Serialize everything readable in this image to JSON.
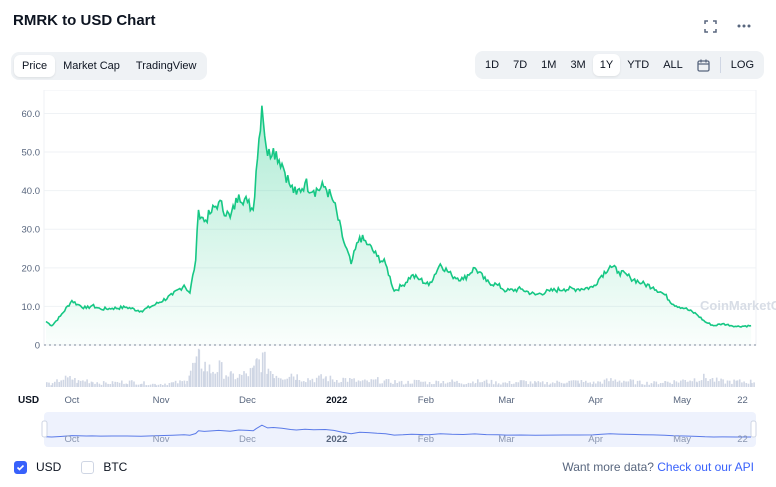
{
  "header": {
    "title": "RMRK to USD Chart"
  },
  "tabs": [
    {
      "label": "Price",
      "active": true
    },
    {
      "label": "Market Cap",
      "active": false
    },
    {
      "label": "TradingView",
      "active": false
    }
  ],
  "ranges": [
    {
      "label": "1D",
      "active": false
    },
    {
      "label": "7D",
      "active": false
    },
    {
      "label": "1M",
      "active": false
    },
    {
      "label": "3M",
      "active": false
    },
    {
      "label": "1Y",
      "active": true
    },
    {
      "label": "YTD",
      "active": false
    },
    {
      "label": "ALL",
      "active": false
    }
  ],
  "log_label": "LOG",
  "currencies": [
    {
      "label": "USD",
      "checked": true
    },
    {
      "label": "BTC",
      "checked": false
    }
  ],
  "api": {
    "prefix": "Want more data?",
    "link": "Check out our API"
  },
  "watermark": "CoinMarketCap",
  "colors": {
    "line": "#16c784",
    "accent": "#3861fb",
    "volume": "#cfd6e4",
    "nav_line": "#5a7ae8",
    "nav_fill": "#dde5fb"
  },
  "chart_data": {
    "type": "area",
    "x_unit": "date",
    "x": [
      "2021-09-22",
      "2021-09-24",
      "2021-09-27",
      "2021-10-01",
      "2021-10-03",
      "2021-10-06",
      "2021-10-08",
      "2021-10-11",
      "2021-10-15",
      "2021-10-20",
      "2021-10-25",
      "2021-10-30",
      "2021-11-05",
      "2021-11-09",
      "2021-11-11",
      "2021-11-13",
      "2021-11-14",
      "2021-11-16",
      "2021-11-18",
      "2021-11-21",
      "2021-11-25",
      "2021-11-28",
      "2021-12-01",
      "2021-12-03",
      "2021-12-04",
      "2021-12-06",
      "2021-12-08",
      "2021-12-10",
      "2021-12-13",
      "2021-12-16",
      "2021-12-18",
      "2021-12-21",
      "2021-12-24",
      "2021-12-28",
      "2021-12-31",
      "2022-01-03",
      "2022-01-06",
      "2022-01-09",
      "2022-01-12",
      "2022-01-15",
      "2022-01-18",
      "2022-01-21",
      "2022-01-24",
      "2022-01-27",
      "2022-01-30",
      "2022-02-02",
      "2022-02-06",
      "2022-02-10",
      "2022-02-14",
      "2022-02-18",
      "2022-02-22",
      "2022-02-26",
      "2022-03-01",
      "2022-03-06",
      "2022-03-11",
      "2022-03-16",
      "2022-03-21",
      "2022-03-26",
      "2022-03-31",
      "2022-04-03",
      "2022-04-06",
      "2022-04-09",
      "2022-04-13",
      "2022-04-17",
      "2022-04-21",
      "2022-04-25",
      "2022-04-28",
      "2022-05-02",
      "2022-05-06",
      "2022-05-09",
      "2022-05-12",
      "2022-05-15",
      "2022-05-20",
      "2022-05-25"
    ],
    "y": [
      6.1,
      5.0,
      7.5,
      11.5,
      10.5,
      9.5,
      10.2,
      9.3,
      9.5,
      9.8,
      8.8,
      10.5,
      13.0,
      15.5,
      13.5,
      22.0,
      35.0,
      32.0,
      34.0,
      37.0,
      33.0,
      39.0,
      37.0,
      35.0,
      45.0,
      62.0,
      49.0,
      51.0,
      47.0,
      41.0,
      39.0,
      42.0,
      40.0,
      41.0,
      37.0,
      28.0,
      21.0,
      28.0,
      26.0,
      23.0,
      21.0,
      14.0,
      15.5,
      18.0,
      17.0,
      15.5,
      21.0,
      18.0,
      17.0,
      20.0,
      16.5,
      15.5,
      14.0,
      14.5,
      13.0,
      14.0,
      14.5,
      14.5,
      15.0,
      18.0,
      20.5,
      19.0,
      17.5,
      16.0,
      15.0,
      13.0,
      10.5,
      9.5,
      8.0,
      6.0,
      5.0,
      5.5,
      4.8,
      5.0
    ],
    "volume": [
      0.15,
      0.1,
      0.3,
      0.3,
      0.2,
      0.25,
      0.2,
      0.15,
      0.15,
      0.2,
      0.15,
      0.1,
      0.15,
      0.2,
      0.6,
      0.9,
      1.0,
      0.8,
      0.6,
      0.7,
      0.4,
      0.4,
      0.5,
      0.6,
      0.9,
      1.0,
      0.7,
      0.5,
      0.4,
      0.5,
      0.4,
      0.3,
      0.3,
      0.35,
      0.25,
      0.3,
      0.25,
      0.2,
      0.2,
      0.25,
      0.2,
      0.2,
      0.15,
      0.2,
      0.2,
      0.15,
      0.2,
      0.2,
      0.15,
      0.2,
      0.2,
      0.15,
      0.15,
      0.2,
      0.15,
      0.15,
      0.2,
      0.2,
      0.15,
      0.2,
      0.25,
      0.25,
      0.2,
      0.15,
      0.15,
      0.2,
      0.2,
      0.25,
      0.3,
      0.35,
      0.25,
      0.2,
      0.2,
      0.2
    ],
    "yticks": [
      0,
      10,
      20,
      30,
      40,
      50,
      60
    ],
    "ytick_labels": [
      "0",
      "10.0",
      "20.0",
      "30.0",
      "40.0",
      "50.0",
      "60.0"
    ],
    "ylim": [
      0,
      64
    ],
    "xlim": [
      "2021-09-22",
      "2022-05-26"
    ],
    "xticks": [
      {
        "label": "Oct",
        "date": "2021-10-01"
      },
      {
        "label": "Nov",
        "date": "2021-11-01"
      },
      {
        "label": "Dec",
        "date": "2021-12-01"
      },
      {
        "label": "2022",
        "date": "2022-01-01"
      },
      {
        "label": "Feb",
        "date": "2022-02-01"
      },
      {
        "label": "Mar",
        "date": "2022-03-01"
      },
      {
        "label": "Apr",
        "date": "2022-04-01"
      },
      {
        "label": "May",
        "date": "2022-05-01"
      },
      {
        "label": "22",
        "date": "2022-05-22"
      }
    ],
    "y_unit_label": "USD",
    "grid": true
  }
}
